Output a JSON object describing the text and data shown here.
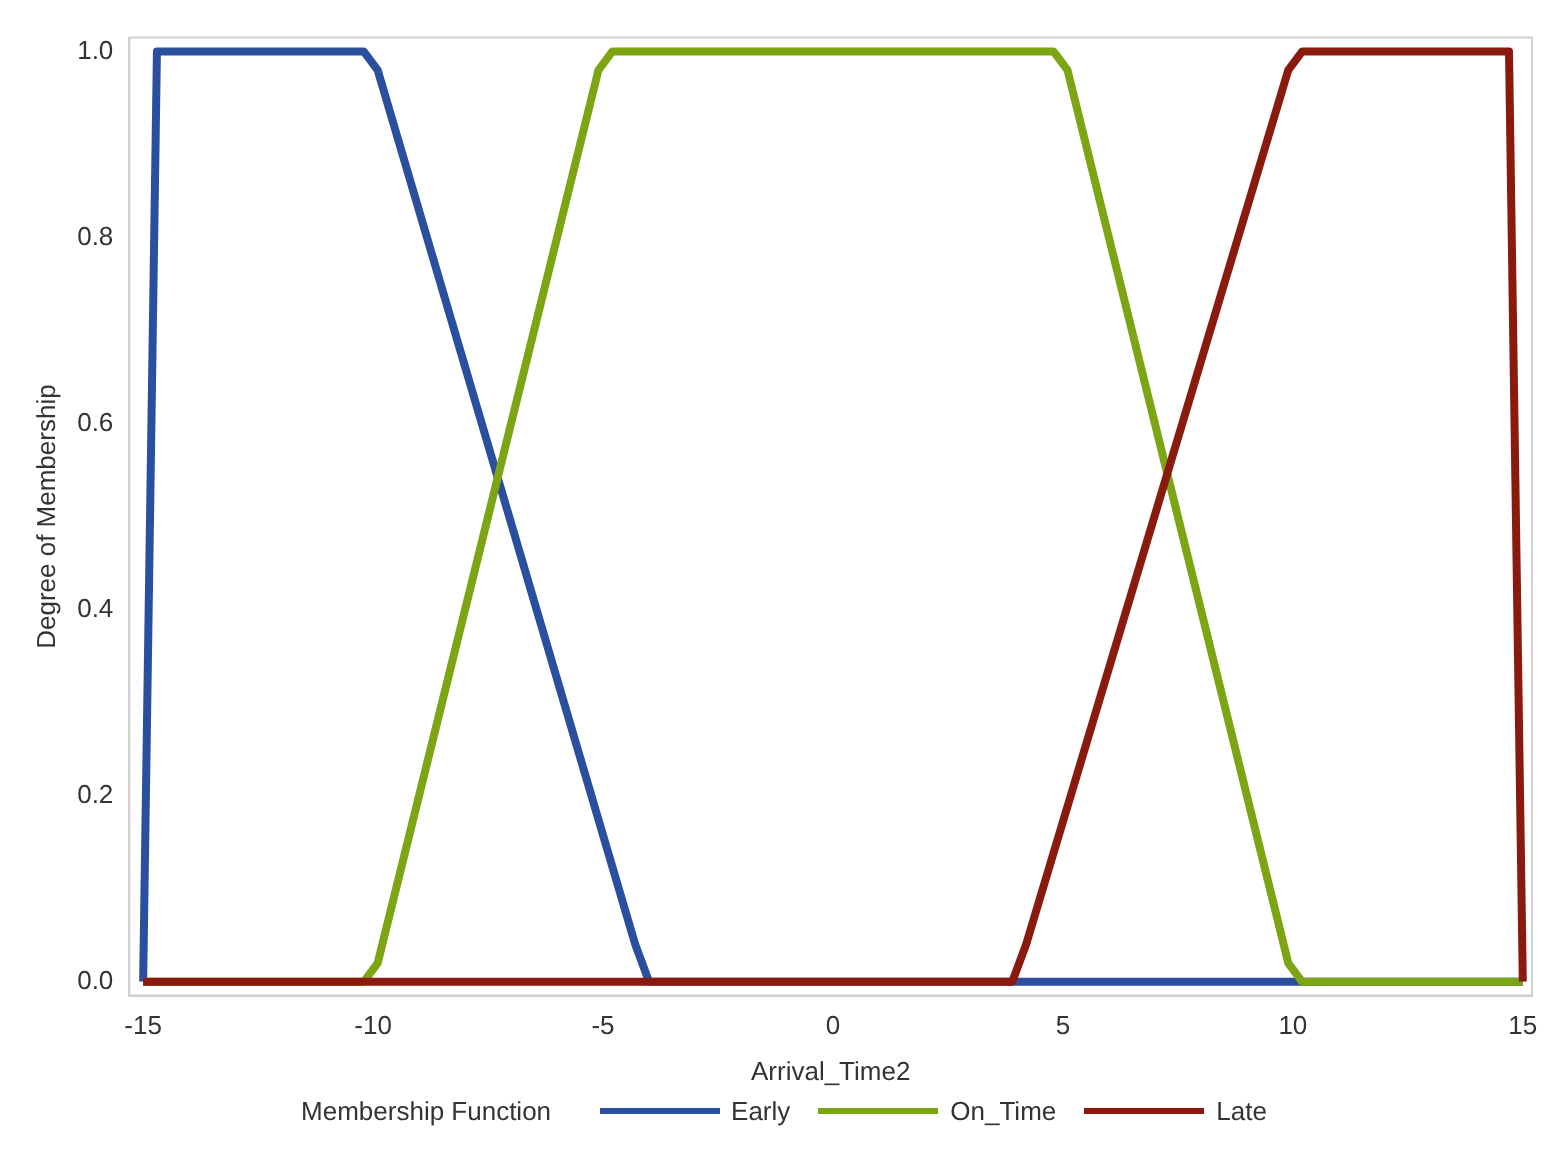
{
  "chart_data": {
    "type": "line",
    "xlabel": "Arrival_Time2",
    "ylabel": "Degree of Membership",
    "legend_title": "Membership Function",
    "legend": "bottom",
    "grid": false,
    "marker": "none",
    "line_style": "solid",
    "xlim": [
      -15.3,
      15.2
    ],
    "xticks": [
      -15,
      -10,
      -5,
      0,
      5,
      10,
      15
    ],
    "ylim": [
      -0.015,
      1.015
    ],
    "yticks": [
      {
        "value": 0,
        "label": "0.0"
      },
      0.2,
      0.4,
      0.6,
      0.8,
      {
        "value": 1,
        "label": "1.0"
      }
    ],
    "series": [
      {
        "name": "Early",
        "color": "#2a4f9e",
        "x": [
          -15,
          -14.7,
          -10.2,
          -9.9,
          -4.3,
          -4,
          15
        ],
        "values": [
          0,
          1,
          1,
          0.98,
          0.04,
          0,
          0
        ]
      },
      {
        "name": "On_Time",
        "color": "#7ba513",
        "x": [
          -15,
          -10.2,
          -9.9,
          -5.1,
          -4.8,
          4.8,
          5.1,
          9.9,
          10.2,
          15
        ],
        "values": [
          0,
          0,
          0.02,
          0.98,
          1,
          1,
          0.98,
          0.02,
          0,
          0
        ]
      },
      {
        "name": "Late",
        "color": "#8b1a0e",
        "x": [
          -15,
          3.9,
          4.2,
          9.9,
          10.2,
          14.7,
          15
        ],
        "values": [
          0,
          0,
          0.04,
          0.98,
          1,
          1,
          0
        ]
      }
    ]
  }
}
